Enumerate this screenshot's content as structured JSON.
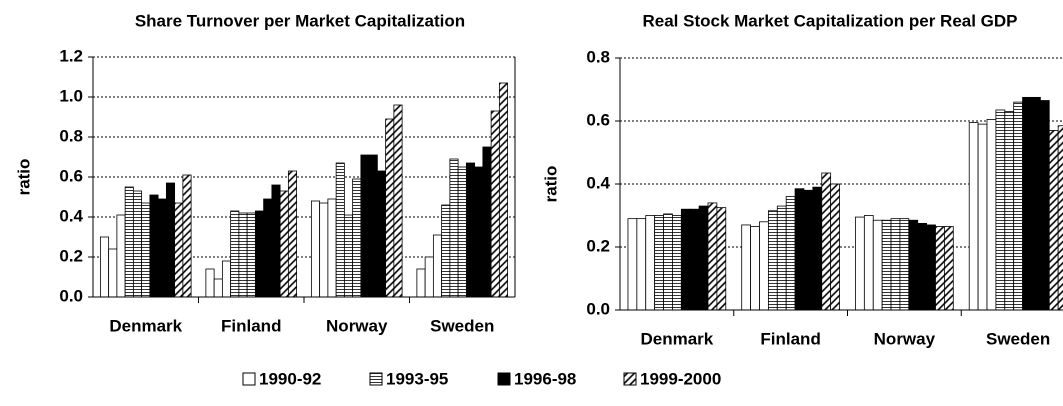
{
  "chart_data": [
    {
      "type": "bar",
      "title": "Share Turnover per Market Capitalization",
      "ylabel": "ratio",
      "categories": [
        "Denmark",
        "Finland",
        "Norway",
        "Sweden"
      ],
      "series": [
        {
          "name": "1990-92",
          "color": "#ffffff",
          "pattern": "none",
          "values": [
            [
              0.3,
              0.24,
              0.41
            ],
            [
              0.14,
              0.09,
              0.18
            ],
            [
              0.48,
              0.47,
              0.49
            ],
            [
              0.14,
              0.2,
              0.31
            ]
          ]
        },
        {
          "name": "1993-95",
          "color": "#ffffff",
          "pattern": "horizontal",
          "values": [
            [
              0.55,
              0.53,
              0.47
            ],
            [
              0.43,
              0.42,
              0.42
            ],
            [
              0.67,
              0.41,
              0.59
            ],
            [
              0.46,
              0.69,
              0.65
            ]
          ]
        },
        {
          "name": "1996-98",
          "color": "#000000",
          "pattern": "solid",
          "values": [
            [
              0.51,
              0.49,
              0.57
            ],
            [
              0.43,
              0.49,
              0.56
            ],
            [
              0.71,
              0.71,
              0.63
            ],
            [
              0.67,
              0.65,
              0.75
            ]
          ]
        },
        {
          "name": "1999-2000",
          "color": "#ffffff",
          "pattern": "diagonal",
          "values": [
            [
              0.47,
              0.61
            ],
            [
              0.53,
              0.63
            ],
            [
              0.89,
              0.96
            ],
            [
              0.93,
              1.07
            ]
          ]
        }
      ],
      "ylim": [
        0,
        1.2
      ],
      "yticks": [
        {
          "value": 0,
          "label": "0.0"
        },
        0.2,
        0.4,
        0.6,
        0.8,
        {
          "value": 1,
          "label": "1.0"
        },
        1.2
      ],
      "grid": true
    },
    {
      "type": "bar",
      "title": "Real Stock Market Capitalization per Real GDP",
      "ylabel": "ratio",
      "categories": [
        "Denmark",
        "Finland",
        "Norway",
        "Sweden"
      ],
      "series": [
        {
          "name": "1990-92",
          "color": "#ffffff",
          "pattern": "none",
          "values": [
            [
              0.29,
              0.29,
              0.3
            ],
            [
              0.27,
              0.265,
              0.28
            ],
            [
              0.295,
              0.3,
              0.285
            ],
            [
              0.595,
              0.59,
              0.605
            ]
          ]
        },
        {
          "name": "1993-95",
          "color": "#ffffff",
          "pattern": "horizontal",
          "values": [
            [
              0.3,
              0.305,
              0.3
            ],
            [
              0.315,
              0.33,
              0.36
            ],
            [
              0.285,
              0.29,
              0.29
            ],
            [
              0.635,
              0.63,
              0.66
            ]
          ]
        },
        {
          "name": "1996-98",
          "color": "#000000",
          "pattern": "solid",
          "values": [
            [
              0.32,
              0.32,
              0.33
            ],
            [
              0.385,
              0.38,
              0.39
            ],
            [
              0.285,
              0.275,
              0.27
            ],
            [
              0.675,
              0.675,
              0.665
            ]
          ]
        },
        {
          "name": "1999-2000",
          "color": "#ffffff",
          "pattern": "diagonal",
          "values": [
            [
              0.34,
              0.325
            ],
            [
              0.435,
              0.4
            ],
            [
              0.265,
              0.265
            ],
            [
              0.57,
              0.585
            ]
          ]
        }
      ],
      "ylim": [
        0,
        0.8
      ],
      "yticks": [
        {
          "value": 0,
          "label": "0.0"
        },
        0.2,
        0.4,
        0.6,
        0.8
      ],
      "grid": true
    }
  ]
}
